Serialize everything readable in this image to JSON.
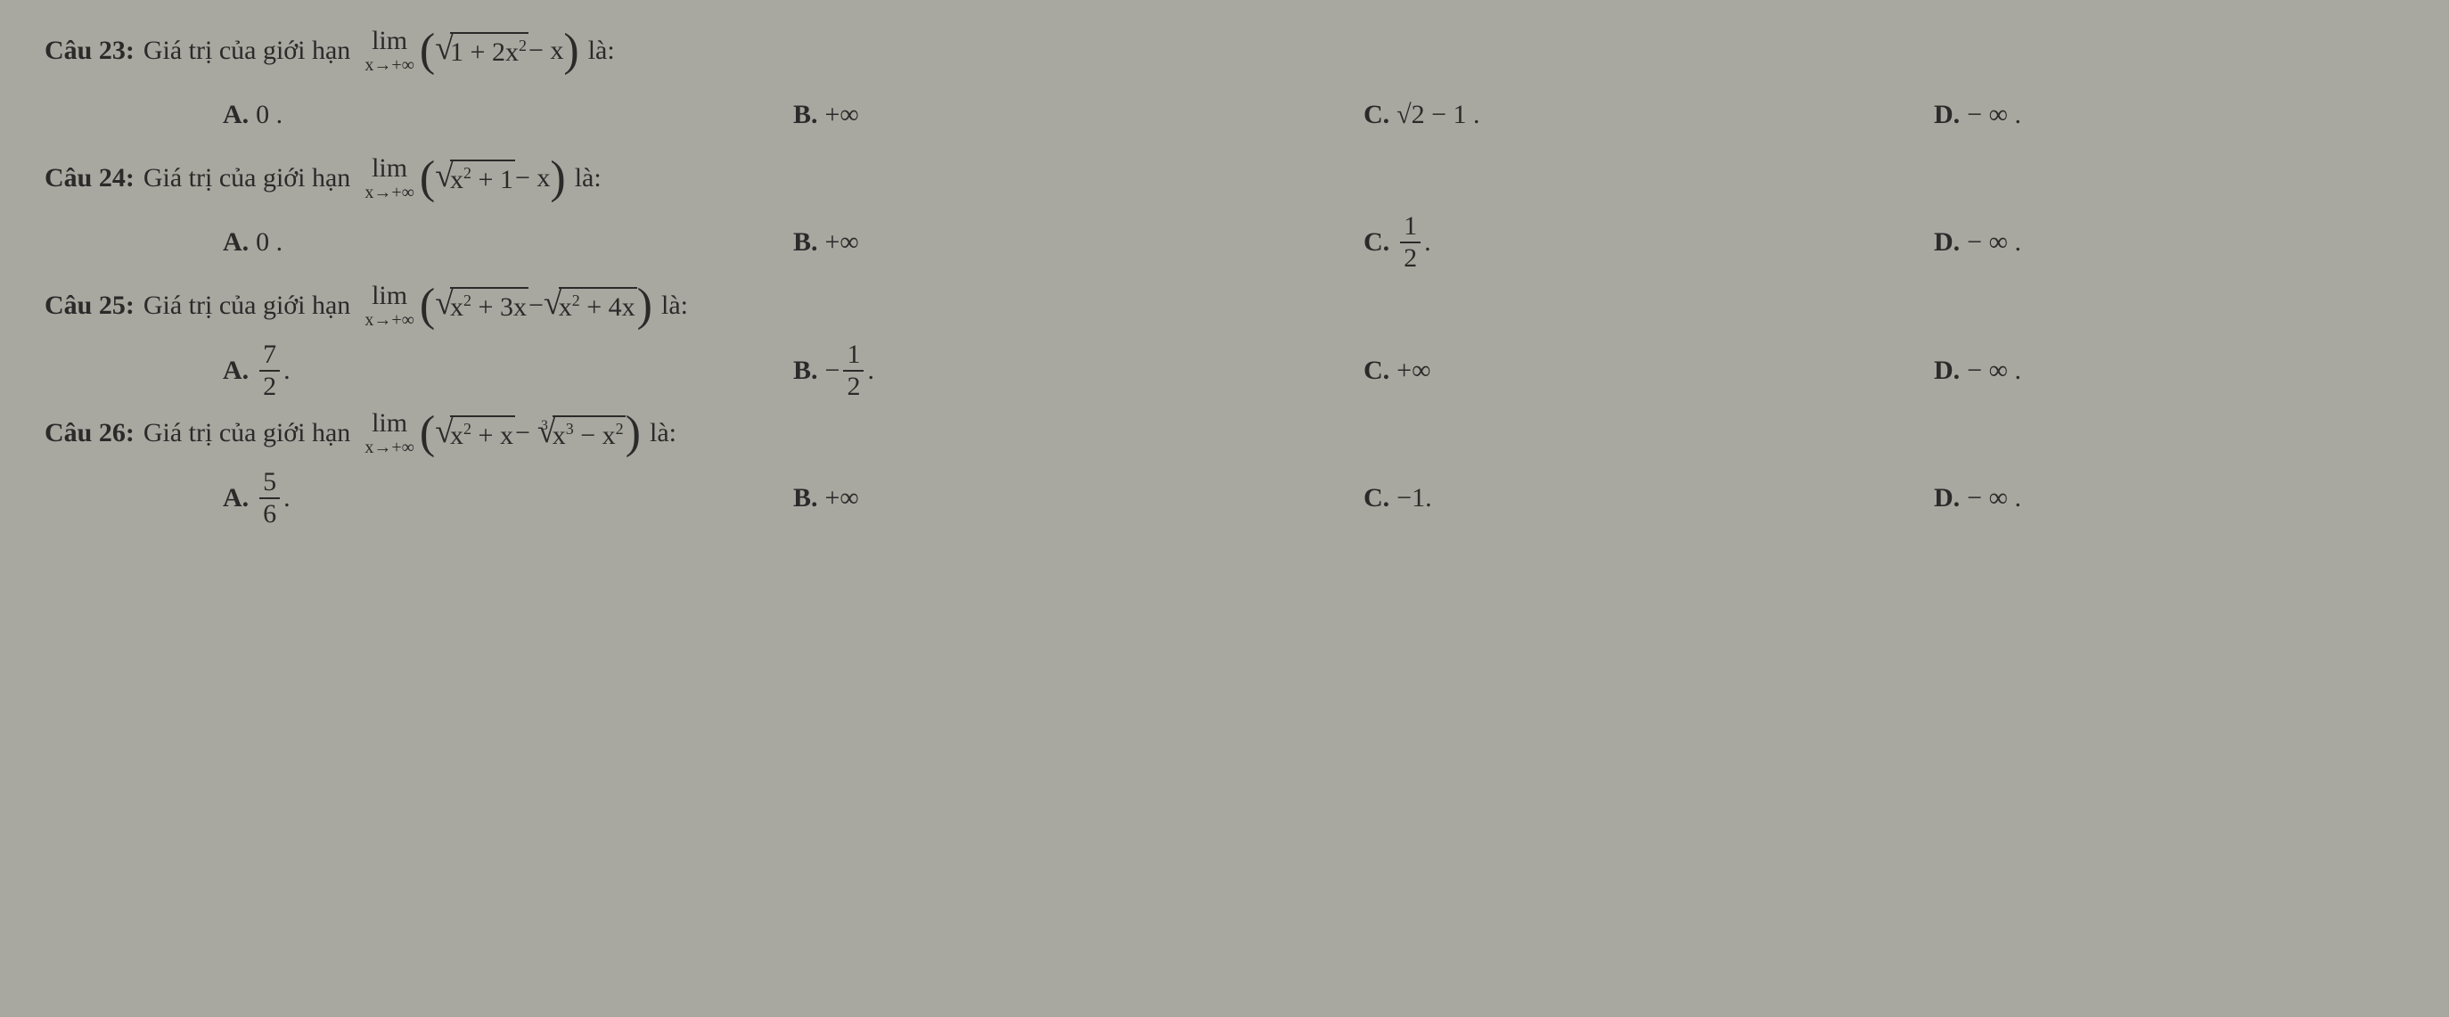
{
  "questions": [
    {
      "label": "Câu 23:",
      "stem_prefix": "Giá trị của giới hạn",
      "lim_top": "lim",
      "lim_bot": "x→+∞",
      "expr_parts": {
        "open_paren": "(",
        "sqrt_radicand": "1 + 2x",
        "sqrt_exp": "2",
        "after_sqrt": " − x",
        "close_paren": ")"
      },
      "stem_suffix": "là:",
      "choices": {
        "A": "0 .",
        "B": "+∞",
        "C": "√2 − 1 .",
        "D": "− ∞ ."
      }
    },
    {
      "label": "Câu 24:",
      "stem_prefix": "Giá trị của giới hạn",
      "lim_top": "lim",
      "lim_bot": "x→+∞",
      "expr_parts": {
        "open_paren": "(",
        "sqrt_radicand": "x",
        "sqrt_exp": "2",
        "after_inside": " + 1",
        "after_sqrt": " − x",
        "close_paren": ")"
      },
      "stem_suffix": "là:",
      "choices": {
        "A": "0 .",
        "B": "+∞",
        "C_frac": {
          "num": "1",
          "den": "2",
          "suffix": "."
        },
        "D": "− ∞ ."
      }
    },
    {
      "label": "Câu 25:",
      "stem_prefix": "Giá trị của giới hạn",
      "lim_top": "lim",
      "lim_bot": "x→+∞",
      "expr_parts": {
        "open_paren": "(",
        "sqrt1_radicand_a": "x",
        "sqrt1_exp": "2",
        "sqrt1_radicand_b": " + 3x",
        "minus": " − ",
        "sqrt2_radicand_a": "x",
        "sqrt2_exp": "2",
        "sqrt2_radicand_b": " + 4x",
        "close_paren": ")"
      },
      "stem_suffix": "là:",
      "choices": {
        "A_frac": {
          "num": "7",
          "den": "2",
          "suffix": "."
        },
        "B_frac": {
          "prefix": "−",
          "num": "1",
          "den": "2",
          "suffix": "."
        },
        "C": "+∞",
        "D": "− ∞ ."
      }
    },
    {
      "label": "Câu 26:",
      "stem_prefix": "Giá trị của giới hạn",
      "lim_top": "lim",
      "lim_bot": "x→+∞",
      "expr_parts": {
        "open_paren": "(",
        "sqrt1_radicand_a": "x",
        "sqrt1_exp": "2",
        "sqrt1_radicand_b": " + x",
        "minus": " − ",
        "root_index": "3",
        "sqrt2_radicand_a": "x",
        "sqrt2_exp": "3",
        "sqrt2_radicand_b": " − x",
        "sqrt2_exp2": "2",
        "close_paren": ")"
      },
      "stem_suffix": "là:",
      "choices": {
        "A_frac": {
          "num": "5",
          "den": "6",
          "suffix": "."
        },
        "B": "+∞",
        "C": "−1.",
        "D": "− ∞ ."
      }
    }
  ]
}
